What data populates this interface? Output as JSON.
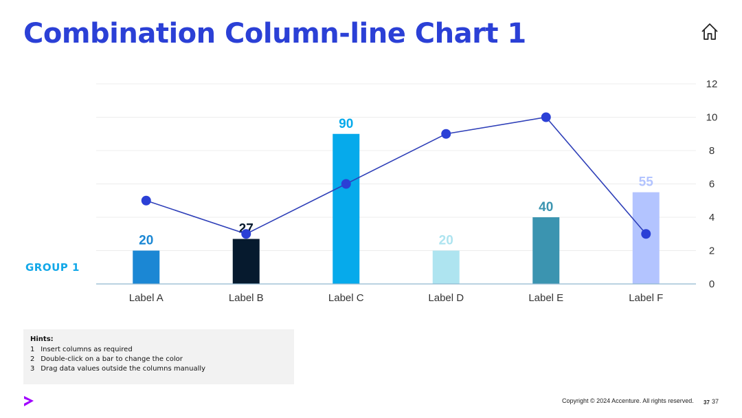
{
  "slide": {
    "title": "Combination Column-line Chart 1",
    "group_label": "GROUP 1",
    "copyright": "Copyright © 2024 Accenture. All rights reserved.",
    "page_number_bold": "37",
    "page_number": "37"
  },
  "hints": {
    "title": "Hints:",
    "items": [
      {
        "num": "1",
        "text": "Insert columns as required"
      },
      {
        "num": "2",
        "text": "Double-click on a bar to change the color"
      },
      {
        "num": "3",
        "text": "Drag data values outside the columns manually"
      }
    ]
  },
  "icons": {
    "home": "home-icon",
    "brand": "accenture-greater-than-logo"
  },
  "colors": {
    "title": "#2b40d6",
    "group_label": "#13a8e8",
    "line": "#2e3fb8",
    "line_marker": "#2b40d6",
    "brand": "#a100ff"
  },
  "chart_data": {
    "type": "bar",
    "categories": [
      "Label A",
      "Label B",
      "Label C",
      "Label D",
      "Label E",
      "Label F"
    ],
    "series": [
      {
        "type": "bar",
        "values": [
          20,
          27,
          90,
          20,
          40,
          55
        ],
        "colors": [
          "#1b87d4",
          "#061a2e",
          "#06aaeb",
          "#aee4f0",
          "#3b94b0",
          "#b3c4ff"
        ],
        "label_colors": [
          "#1b87d4",
          "#061a2e",
          "#06aaeb",
          "#aee4f0",
          "#3b94b0",
          "#b3c4ff"
        ]
      },
      {
        "type": "line",
        "axis": "right",
        "values": [
          5,
          3,
          6,
          9,
          10,
          3
        ]
      }
    ],
    "bar_axis_range": [
      0,
      120
    ],
    "right_axis": {
      "range": [
        0,
        12
      ],
      "ticks": [
        0,
        2,
        4,
        6,
        8,
        10,
        12
      ]
    },
    "grid": true,
    "legend": "none"
  }
}
